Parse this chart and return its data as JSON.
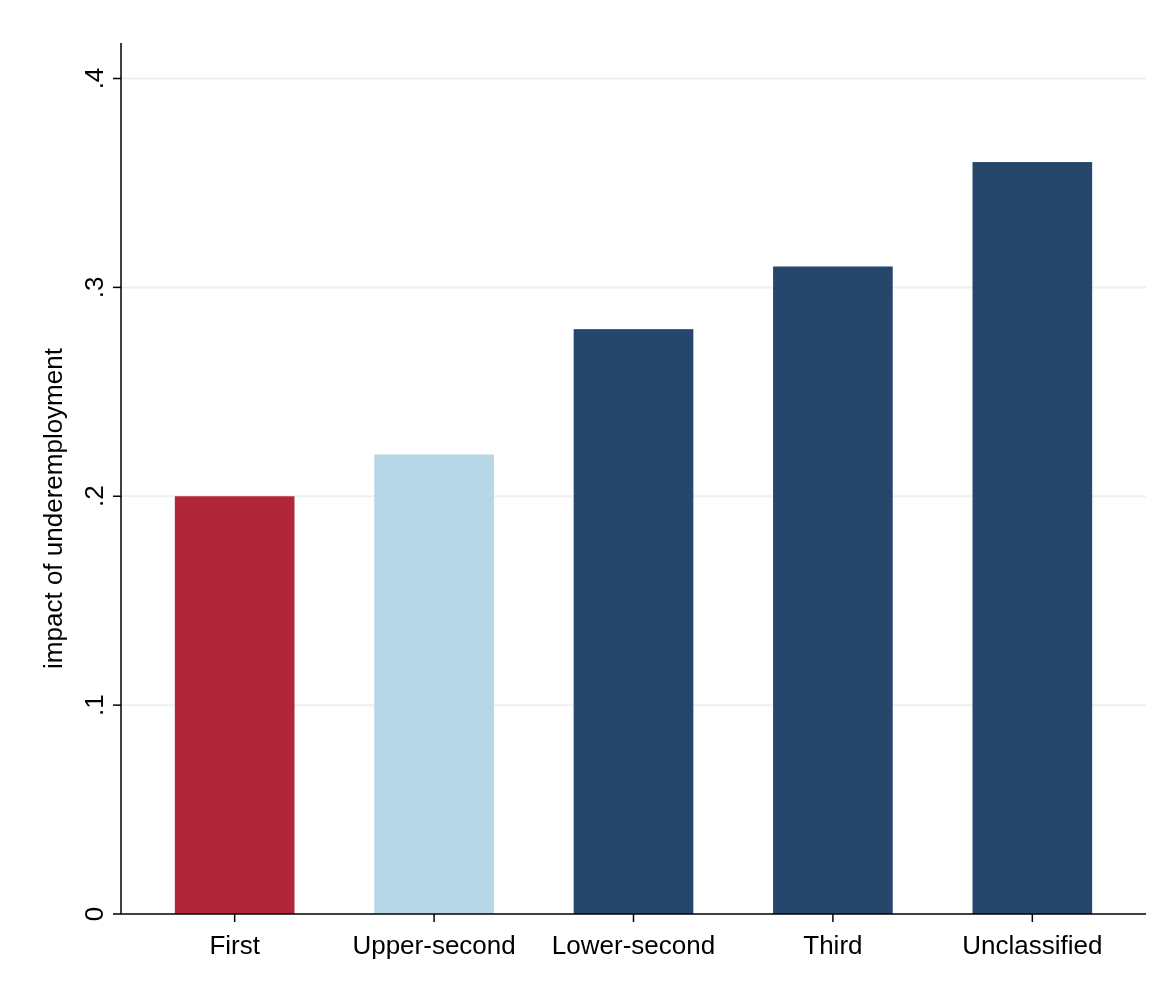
{
  "chart_data": {
    "type": "bar",
    "ylabel": "impact of underemployment",
    "categories": [
      "First",
      "Upper-second",
      "Lower-second",
      "Third",
      "Unclassified"
    ],
    "values": [
      0.2,
      0.22,
      0.28,
      0.31,
      0.36
    ],
    "colors": [
      "#b22639",
      "#b5d7e6",
      "#26466b",
      "#26466b",
      "#26466b"
    ],
    "ylim": [
      0,
      0.417
    ],
    "yticks": [
      {
        "value": 0,
        "label": "0"
      },
      {
        "value": 0.1,
        "label": ".1"
      },
      {
        "value": 0.2,
        "label": ".2"
      },
      {
        "value": 0.3,
        "label": ".3"
      },
      {
        "value": 0.4,
        "label": ".4"
      }
    ],
    "grid": "y"
  }
}
